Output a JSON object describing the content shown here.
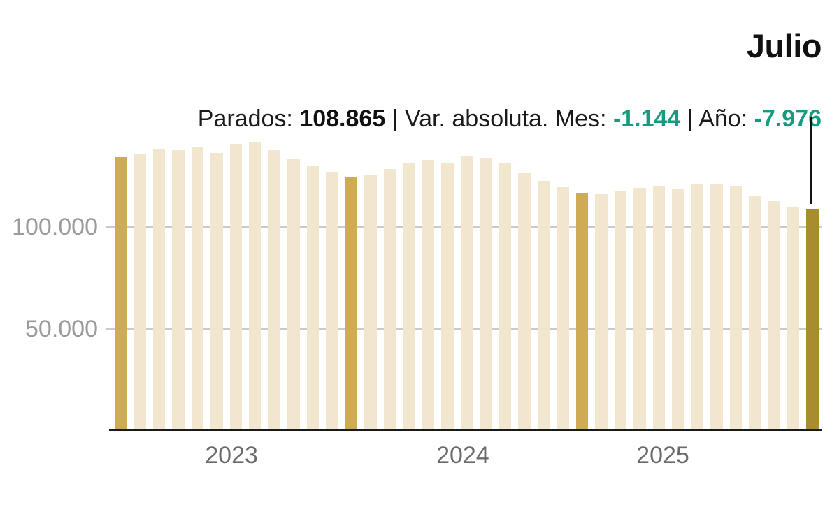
{
  "header": {
    "title": "Julio",
    "subtitle": {
      "parados_label": "Parados: ",
      "parados_value": "108.865",
      "sep1": " | ",
      "var_mes_label": "Var. absoluta. Mes: ",
      "var_mes_value": "-1.144",
      "sep2": " | ",
      "var_ano_label": "Año: ",
      "var_ano_value": "-7.976"
    }
  },
  "colors": {
    "accent_teal": "#179b80",
    "bar_default": "#f2e6ce",
    "bar_july_highlight": "#cfab55",
    "bar_current": "#a78d2f",
    "gridline": "#c9c9ce",
    "axis_line": "#1a1a1a",
    "annotation_line": "#141414",
    "y_label": "#9b9b9b",
    "x_label": "#6b6b6b",
    "title_text": "#111111"
  },
  "chart_data": {
    "type": "bar",
    "title": "Julio",
    "x_start": "2022-07",
    "x_end": "2025-07",
    "interval": "monthly",
    "values": [
      134400,
      136200,
      138600,
      137700,
      139100,
      136600,
      140800,
      141500,
      137700,
      133300,
      130200,
      126800,
      124500,
      125900,
      128500,
      131600,
      133100,
      131400,
      135100,
      133900,
      131200,
      126600,
      122800,
      119700,
      116841,
      116200,
      117600,
      119300,
      119900,
      119000,
      121000,
      121300,
      119900,
      115300,
      112800,
      110009,
      108865
    ],
    "highlight_indices": [
      0,
      12,
      24
    ],
    "current_index": 36,
    "current_value": 108865,
    "var_month": -1144,
    "var_year": -7976,
    "ylim": [
      0,
      143000
    ],
    "grid": true,
    "legend": "none",
    "y_ticks": [
      {
        "value": 100000,
        "label": "100.000"
      },
      {
        "value": 50000,
        "label": "50.000"
      }
    ],
    "x_ticks": [
      {
        "label": "2023",
        "pos_pct": 17.0
      },
      {
        "label": "2024",
        "pos_pct": 49.5
      },
      {
        "label": "2025",
        "pos_pct": 77.6
      }
    ]
  }
}
